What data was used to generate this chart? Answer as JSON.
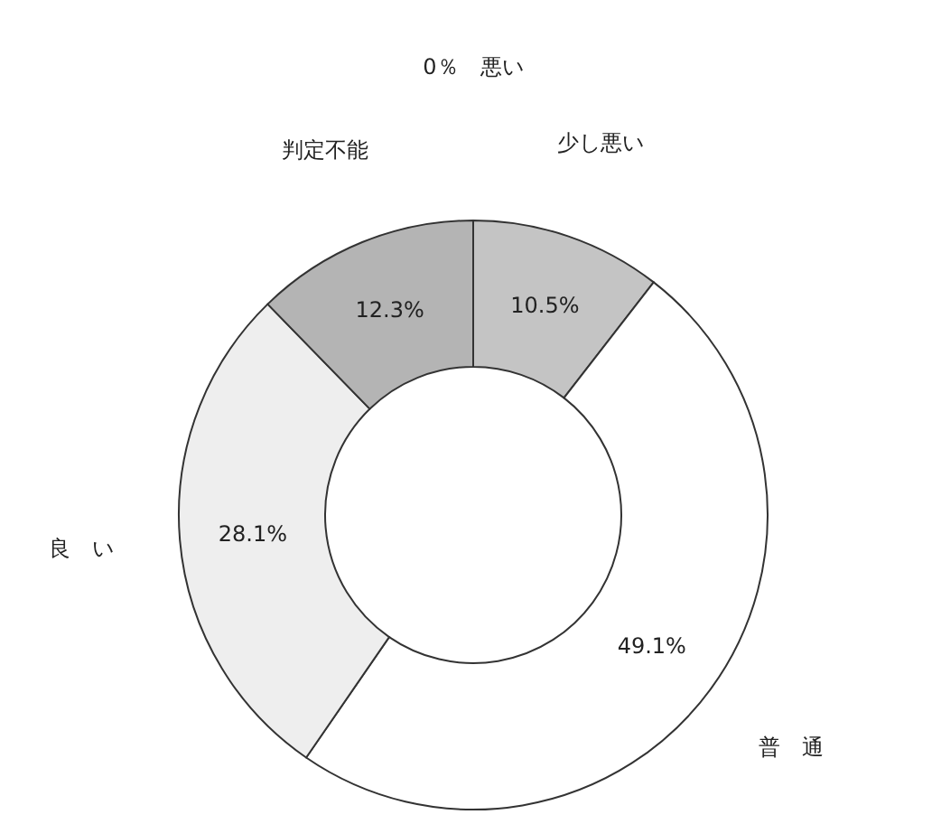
{
  "chart_data": {
    "type": "donut",
    "categories": [
      "悪い",
      "少し悪い",
      "普　通",
      "良　い",
      "判定不能"
    ],
    "values": [
      0,
      10.5,
      49.1,
      28.1,
      12.3
    ],
    "value_labels": [
      "0％",
      "10.5%",
      "49.1%",
      "28.1%",
      "12.3%"
    ],
    "colors": [
      null,
      "#c4c4c4",
      "#ffffff",
      "#eeeeee",
      "#b4b4b4"
    ]
  }
}
